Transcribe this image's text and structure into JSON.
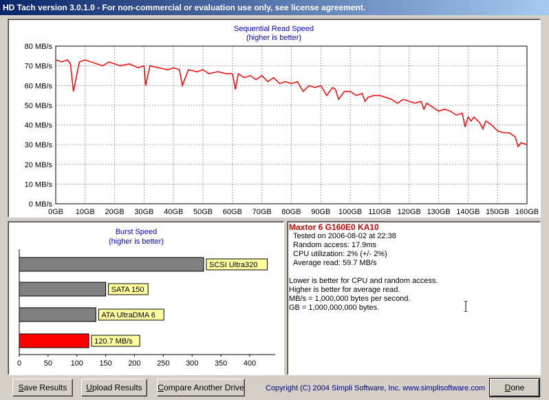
{
  "window": {
    "title": "HD Tach version 3.0.1.0  - For non-commercial or evaluation use only, see license agreement."
  },
  "sequential": {
    "title": "Sequential Read Speed",
    "subtitle": "(higher is better)",
    "y_labels": [
      "80 MB/s",
      "70 MB/s",
      "60 MB/s",
      "50 MB/s",
      "40 MB/s",
      "30 MB/s",
      "20 MB/s",
      "10 MB/s",
      "0 MB/s"
    ],
    "x_labels": [
      "0GB",
      "10GB",
      "20GB",
      "30GB",
      "40GB",
      "50GB",
      "60GB",
      "70GB",
      "80GB",
      "90GB",
      "100GB",
      "110GB",
      "120GB",
      "130GB",
      "140GB",
      "150GB",
      "160GB"
    ],
    "line_color": "#ff0000"
  },
  "burst": {
    "title": "Burst Speed",
    "subtitle": "(higher is better)",
    "x_labels": [
      "0",
      "50",
      "100",
      "150",
      "200",
      "250",
      "300",
      "350",
      "400"
    ]
  },
  "chart_data": [
    {
      "type": "line",
      "title": "Sequential Read Speed",
      "subtitle": "(higher is better)",
      "xlabel": "",
      "ylabel": "",
      "xlim": [
        0,
        160
      ],
      "ylim": [
        0,
        80
      ],
      "grid": true,
      "x": [
        0,
        2,
        4,
        5,
        6,
        8,
        10,
        12,
        14,
        16,
        18,
        20,
        22,
        25,
        28,
        30,
        30.5,
        32,
        35,
        38,
        40,
        42,
        43,
        45,
        48,
        50,
        52,
        55,
        58,
        60,
        61,
        62,
        64,
        66,
        68,
        70,
        72,
        74,
        76,
        78,
        80,
        82,
        84,
        86,
        88,
        90,
        92,
        94,
        95,
        96,
        98,
        100,
        102,
        104,
        105,
        106,
        108,
        110,
        112,
        114,
        116,
        118,
        120,
        122,
        124,
        125,
        126,
        128,
        130,
        132,
        134,
        136,
        138,
        139,
        140,
        141,
        142,
        144,
        145,
        146,
        148,
        150,
        152,
        154,
        156,
        157,
        158,
        160
      ],
      "y": [
        73,
        72,
        73,
        71,
        57,
        72,
        73,
        72,
        71,
        70,
        72,
        71,
        70,
        71,
        69,
        70,
        60,
        70,
        69,
        68,
        69,
        68,
        60,
        68,
        67,
        68,
        66,
        67,
        66,
        66,
        58,
        66,
        64,
        65,
        63,
        65,
        62,
        64,
        61,
        62,
        61,
        62,
        57,
        60,
        59,
        60,
        55,
        59,
        58,
        53,
        57,
        57,
        55,
        56,
        52,
        54,
        55,
        55,
        54,
        53,
        51,
        53,
        52,
        51,
        52,
        48,
        51,
        49,
        47,
        48,
        47,
        45,
        46,
        39,
        44,
        42,
        44,
        41,
        38,
        42,
        40,
        37,
        36,
        36,
        34,
        29,
        31,
        30
      ],
      "series": [
        {
          "name": "",
          "color": "#ff0000"
        }
      ]
    },
    {
      "type": "bar",
      "title": "Burst Speed",
      "subtitle": "(higher is better)",
      "categories": [
        "SCSI Ultra320",
        "SATA 150",
        "ATA UltraDMA 6",
        "120.7 MB/s"
      ],
      "values": [
        320,
        150,
        133,
        120.7
      ],
      "colors": [
        "#808080",
        "#808080",
        "#808080",
        "#ff0000"
      ],
      "xlim": [
        0,
        400
      ],
      "xlabel": "",
      "ylabel": ""
    }
  ],
  "info": {
    "drive_name": "Maxtor 6 G160E0 KA10",
    "tested_on": "Tested on 2006-08-02 at 22:38",
    "random_access": "Random access: 17.9ms",
    "cpu": "CPU utilization: 2% (+/- 2%)",
    "average_read": "Average read: 59.7 MB/s",
    "note1": "Lower is better for CPU and random access.",
    "note2": "Higher is better for average read.",
    "note3": "MB/s = 1,000,000 bytes per second.",
    "note4": "GB = 1,000,000,000 bytes."
  },
  "buttons": {
    "save_prefix": "",
    "save_ul": "S",
    "save_rest": "ave Results",
    "upload_prefix": "",
    "upload_ul": "U",
    "upload_rest": "pload Results",
    "compare_prefix": "",
    "compare_ul": "C",
    "compare_rest": "ompare Another Drive",
    "done_prefix": "",
    "done_ul": "D",
    "done_rest": "one"
  },
  "footer": {
    "copyright": "Copyright (C) 2004 Simpli Software, Inc. www.simplisoftware.com"
  },
  "icons": {
    "text_cursor": "i-beam-cursor-icon"
  }
}
